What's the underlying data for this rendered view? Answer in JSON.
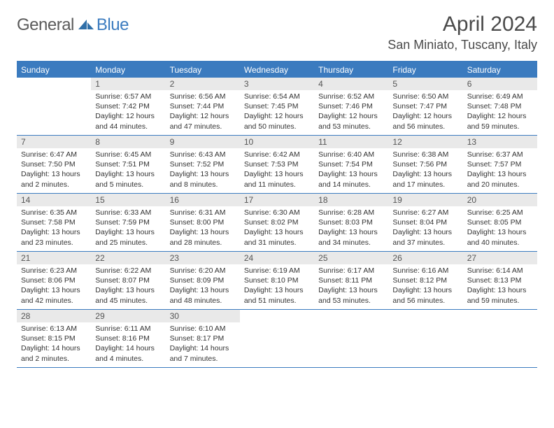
{
  "logo": {
    "general": "General",
    "blue": "Blue"
  },
  "title": "April 2024",
  "location": "San Miniato, Tuscany, Italy",
  "dayNames": [
    "Sunday",
    "Monday",
    "Tuesday",
    "Wednesday",
    "Thursday",
    "Friday",
    "Saturday"
  ],
  "colors": {
    "accent": "#3b7bbf",
    "numBg": "#e9e9e9",
    "text": "#333333"
  },
  "weeks": [
    [
      {
        "num": "",
        "sunrise": "",
        "sunset": "",
        "daylight": ""
      },
      {
        "num": "1",
        "sunrise": "Sunrise: 6:57 AM",
        "sunset": "Sunset: 7:42 PM",
        "daylight": "Daylight: 12 hours and 44 minutes."
      },
      {
        "num": "2",
        "sunrise": "Sunrise: 6:56 AM",
        "sunset": "Sunset: 7:44 PM",
        "daylight": "Daylight: 12 hours and 47 minutes."
      },
      {
        "num": "3",
        "sunrise": "Sunrise: 6:54 AM",
        "sunset": "Sunset: 7:45 PM",
        "daylight": "Daylight: 12 hours and 50 minutes."
      },
      {
        "num": "4",
        "sunrise": "Sunrise: 6:52 AM",
        "sunset": "Sunset: 7:46 PM",
        "daylight": "Daylight: 12 hours and 53 minutes."
      },
      {
        "num": "5",
        "sunrise": "Sunrise: 6:50 AM",
        "sunset": "Sunset: 7:47 PM",
        "daylight": "Daylight: 12 hours and 56 minutes."
      },
      {
        "num": "6",
        "sunrise": "Sunrise: 6:49 AM",
        "sunset": "Sunset: 7:48 PM",
        "daylight": "Daylight: 12 hours and 59 minutes."
      }
    ],
    [
      {
        "num": "7",
        "sunrise": "Sunrise: 6:47 AM",
        "sunset": "Sunset: 7:50 PM",
        "daylight": "Daylight: 13 hours and 2 minutes."
      },
      {
        "num": "8",
        "sunrise": "Sunrise: 6:45 AM",
        "sunset": "Sunset: 7:51 PM",
        "daylight": "Daylight: 13 hours and 5 minutes."
      },
      {
        "num": "9",
        "sunrise": "Sunrise: 6:43 AM",
        "sunset": "Sunset: 7:52 PM",
        "daylight": "Daylight: 13 hours and 8 minutes."
      },
      {
        "num": "10",
        "sunrise": "Sunrise: 6:42 AM",
        "sunset": "Sunset: 7:53 PM",
        "daylight": "Daylight: 13 hours and 11 minutes."
      },
      {
        "num": "11",
        "sunrise": "Sunrise: 6:40 AM",
        "sunset": "Sunset: 7:54 PM",
        "daylight": "Daylight: 13 hours and 14 minutes."
      },
      {
        "num": "12",
        "sunrise": "Sunrise: 6:38 AM",
        "sunset": "Sunset: 7:56 PM",
        "daylight": "Daylight: 13 hours and 17 minutes."
      },
      {
        "num": "13",
        "sunrise": "Sunrise: 6:37 AM",
        "sunset": "Sunset: 7:57 PM",
        "daylight": "Daylight: 13 hours and 20 minutes."
      }
    ],
    [
      {
        "num": "14",
        "sunrise": "Sunrise: 6:35 AM",
        "sunset": "Sunset: 7:58 PM",
        "daylight": "Daylight: 13 hours and 23 minutes."
      },
      {
        "num": "15",
        "sunrise": "Sunrise: 6:33 AM",
        "sunset": "Sunset: 7:59 PM",
        "daylight": "Daylight: 13 hours and 25 minutes."
      },
      {
        "num": "16",
        "sunrise": "Sunrise: 6:31 AM",
        "sunset": "Sunset: 8:00 PM",
        "daylight": "Daylight: 13 hours and 28 minutes."
      },
      {
        "num": "17",
        "sunrise": "Sunrise: 6:30 AM",
        "sunset": "Sunset: 8:02 PM",
        "daylight": "Daylight: 13 hours and 31 minutes."
      },
      {
        "num": "18",
        "sunrise": "Sunrise: 6:28 AM",
        "sunset": "Sunset: 8:03 PM",
        "daylight": "Daylight: 13 hours and 34 minutes."
      },
      {
        "num": "19",
        "sunrise": "Sunrise: 6:27 AM",
        "sunset": "Sunset: 8:04 PM",
        "daylight": "Daylight: 13 hours and 37 minutes."
      },
      {
        "num": "20",
        "sunrise": "Sunrise: 6:25 AM",
        "sunset": "Sunset: 8:05 PM",
        "daylight": "Daylight: 13 hours and 40 minutes."
      }
    ],
    [
      {
        "num": "21",
        "sunrise": "Sunrise: 6:23 AM",
        "sunset": "Sunset: 8:06 PM",
        "daylight": "Daylight: 13 hours and 42 minutes."
      },
      {
        "num": "22",
        "sunrise": "Sunrise: 6:22 AM",
        "sunset": "Sunset: 8:07 PM",
        "daylight": "Daylight: 13 hours and 45 minutes."
      },
      {
        "num": "23",
        "sunrise": "Sunrise: 6:20 AM",
        "sunset": "Sunset: 8:09 PM",
        "daylight": "Daylight: 13 hours and 48 minutes."
      },
      {
        "num": "24",
        "sunrise": "Sunrise: 6:19 AM",
        "sunset": "Sunset: 8:10 PM",
        "daylight": "Daylight: 13 hours and 51 minutes."
      },
      {
        "num": "25",
        "sunrise": "Sunrise: 6:17 AM",
        "sunset": "Sunset: 8:11 PM",
        "daylight": "Daylight: 13 hours and 53 minutes."
      },
      {
        "num": "26",
        "sunrise": "Sunrise: 6:16 AM",
        "sunset": "Sunset: 8:12 PM",
        "daylight": "Daylight: 13 hours and 56 minutes."
      },
      {
        "num": "27",
        "sunrise": "Sunrise: 6:14 AM",
        "sunset": "Sunset: 8:13 PM",
        "daylight": "Daylight: 13 hours and 59 minutes."
      }
    ],
    [
      {
        "num": "28",
        "sunrise": "Sunrise: 6:13 AM",
        "sunset": "Sunset: 8:15 PM",
        "daylight": "Daylight: 14 hours and 2 minutes."
      },
      {
        "num": "29",
        "sunrise": "Sunrise: 6:11 AM",
        "sunset": "Sunset: 8:16 PM",
        "daylight": "Daylight: 14 hours and 4 minutes."
      },
      {
        "num": "30",
        "sunrise": "Sunrise: 6:10 AM",
        "sunset": "Sunset: 8:17 PM",
        "daylight": "Daylight: 14 hours and 7 minutes."
      },
      {
        "num": "",
        "sunrise": "",
        "sunset": "",
        "daylight": ""
      },
      {
        "num": "",
        "sunrise": "",
        "sunset": "",
        "daylight": ""
      },
      {
        "num": "",
        "sunrise": "",
        "sunset": "",
        "daylight": ""
      },
      {
        "num": "",
        "sunrise": "",
        "sunset": "",
        "daylight": ""
      }
    ]
  ]
}
